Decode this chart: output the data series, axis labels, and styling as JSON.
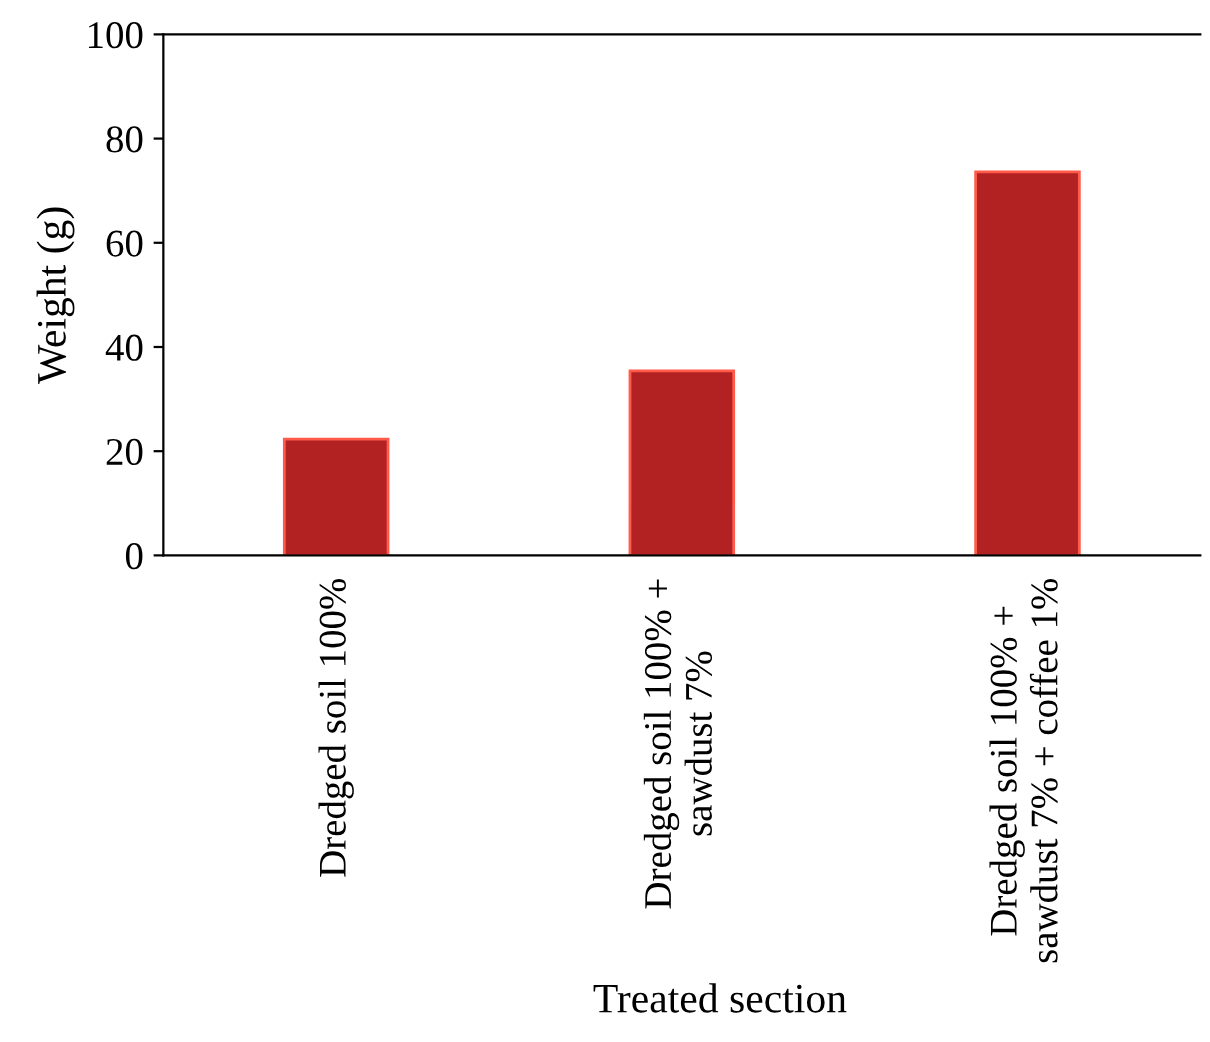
{
  "chart_data": {
    "type": "bar",
    "xlabel": "Treated section",
    "ylabel": "Weight (g)",
    "categories": [
      "Dredged soil 100%",
      "Dredged soil 100% +\nsawdust 7%",
      "Dredged soil 100% +\nsawdust 7% + coffee 1%"
    ],
    "values": [
      22.3,
      35.4,
      73.6
    ],
    "color": "#b22222",
    "ylim": [
      0,
      100
    ],
    "yticks": [
      0,
      20,
      40,
      60,
      80,
      100
    ],
    "grid": false
  }
}
